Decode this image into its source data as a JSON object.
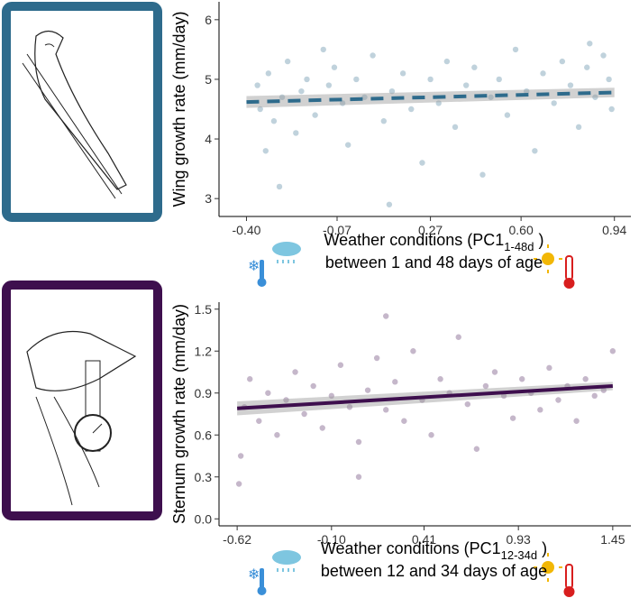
{
  "chart_data": [
    {
      "type": "scatter",
      "ylabel": "Wing growth rate (mm/day)",
      "xlabel_main": "Weather conditions (PC1",
      "xlabel_sub": "1-48d",
      "xlabel_close": " )",
      "xlabel_line2": "between 1 and 48 days of age",
      "color": "#2e6b8c",
      "line_style": "dashed",
      "x": [
        -0.36,
        -0.35,
        -0.33,
        -0.32,
        -0.3,
        -0.28,
        -0.27,
        -0.25,
        -0.22,
        -0.2,
        -0.18,
        -0.15,
        -0.12,
        -0.1,
        -0.08,
        -0.05,
        -0.03,
        0.0,
        0.03,
        0.06,
        0.1,
        0.13,
        0.17,
        0.2,
        0.24,
        0.27,
        0.3,
        0.33,
        0.36,
        0.4,
        0.43,
        0.46,
        0.49,
        0.52,
        0.55,
        0.58,
        0.62,
        0.65,
        0.68,
        0.72,
        0.75,
        0.78,
        0.81,
        0.84,
        0.87,
        0.9,
        0.92,
        0.93,
        0.85,
        0.12
      ],
      "values": [
        4.9,
        4.5,
        3.8,
        5.1,
        4.3,
        3.2,
        4.7,
        5.3,
        4.1,
        4.8,
        5.0,
        4.4,
        5.5,
        4.9,
        5.2,
        4.6,
        3.9,
        5.0,
        4.7,
        5.4,
        4.3,
        4.8,
        5.1,
        4.5,
        3.6,
        5.0,
        4.6,
        5.3,
        4.2,
        4.9,
        5.2,
        3.4,
        4.7,
        5.0,
        4.4,
        5.5,
        4.8,
        3.8,
        5.1,
        4.6,
        5.3,
        4.9,
        4.2,
        5.2,
        4.7,
        5.4,
        5.0,
        4.5,
        5.6,
        2.9
      ],
      "fit": {
        "x": [
          -0.4,
          0.94
        ],
        "values": [
          4.62,
          4.78
        ],
        "lower": [
          4.52,
          4.7
        ],
        "upper": [
          4.72,
          4.86
        ]
      },
      "xlim": [
        -0.5,
        1.0
      ],
      "ylim": [
        2.7,
        6.3
      ],
      "xticks": [
        {
          "value": -0.4,
          "label": "-0.40"
        },
        {
          "value": -0.07,
          "label": "-0.07"
        },
        {
          "value": 0.27,
          "label": "0.27"
        },
        {
          "value": 0.6,
          "label": "0.60"
        },
        {
          "value": 0.94,
          "label": "0.94"
        }
      ],
      "yticks": [
        3,
        4,
        5,
        6
      ]
    },
    {
      "type": "scatter",
      "ylabel": "Sternum growth rate (mm/day)",
      "xlabel_main": "Weather conditions (PC1",
      "xlabel_sub": "12-34d",
      "xlabel_close": " )",
      "xlabel_line2": "between 12 and 34 days of age",
      "color": "#3e0f4e",
      "line_style": "solid",
      "x": [
        -0.6,
        -0.58,
        -0.55,
        -0.5,
        -0.45,
        -0.4,
        -0.35,
        -0.3,
        -0.25,
        -0.2,
        -0.15,
        -0.1,
        -0.05,
        0.0,
        0.05,
        0.1,
        0.15,
        0.2,
        0.25,
        0.3,
        0.35,
        0.4,
        0.45,
        0.5,
        0.55,
        0.6,
        0.65,
        0.7,
        0.75,
        0.8,
        0.85,
        0.9,
        0.95,
        1.0,
        1.05,
        1.1,
        1.15,
        1.2,
        1.25,
        1.3,
        1.35,
        1.4,
        1.45,
        -0.61,
        0.2,
        0.05
      ],
      "values": [
        0.45,
        0.8,
        1.0,
        0.7,
        0.9,
        0.6,
        0.85,
        1.05,
        0.75,
        0.95,
        0.65,
        0.88,
        1.1,
        0.8,
        0.55,
        0.92,
        1.15,
        0.78,
        0.98,
        0.7,
        1.2,
        0.85,
        0.6,
        1.0,
        0.9,
        1.3,
        0.82,
        0.5,
        0.95,
        1.05,
        0.88,
        0.72,
        1.0,
        0.9,
        0.78,
        1.08,
        0.85,
        0.95,
        0.7,
        1.0,
        0.88,
        0.92,
        1.2,
        0.25,
        1.45,
        0.3
      ],
      "fit": {
        "x": [
          -0.62,
          1.45
        ],
        "values": [
          0.79,
          0.95
        ],
        "lower": [
          0.74,
          0.92
        ],
        "upper": [
          0.84,
          0.98
        ]
      },
      "xlim": [
        -0.72,
        1.55
      ],
      "ylim": [
        -0.05,
        1.55
      ],
      "xticks": [
        {
          "value": -0.62,
          "label": "-0.62"
        },
        {
          "value": -0.1,
          "label": "-0.10"
        },
        {
          "value": 0.41,
          "label": "0.41"
        },
        {
          "value": 0.93,
          "label": "0.93"
        },
        {
          "value": 1.45,
          "label": "1.45"
        }
      ],
      "yticks": [
        {
          "value": 0.0,
          "label": "0.0"
        },
        {
          "value": 0.3,
          "label": "0.3"
        },
        {
          "value": 0.6,
          "label": "0.6"
        },
        {
          "value": 0.9,
          "label": "0.9"
        },
        {
          "value": 1.2,
          "label": "1.2"
        },
        {
          "value": 1.5,
          "label": "1.5"
        }
      ]
    }
  ]
}
